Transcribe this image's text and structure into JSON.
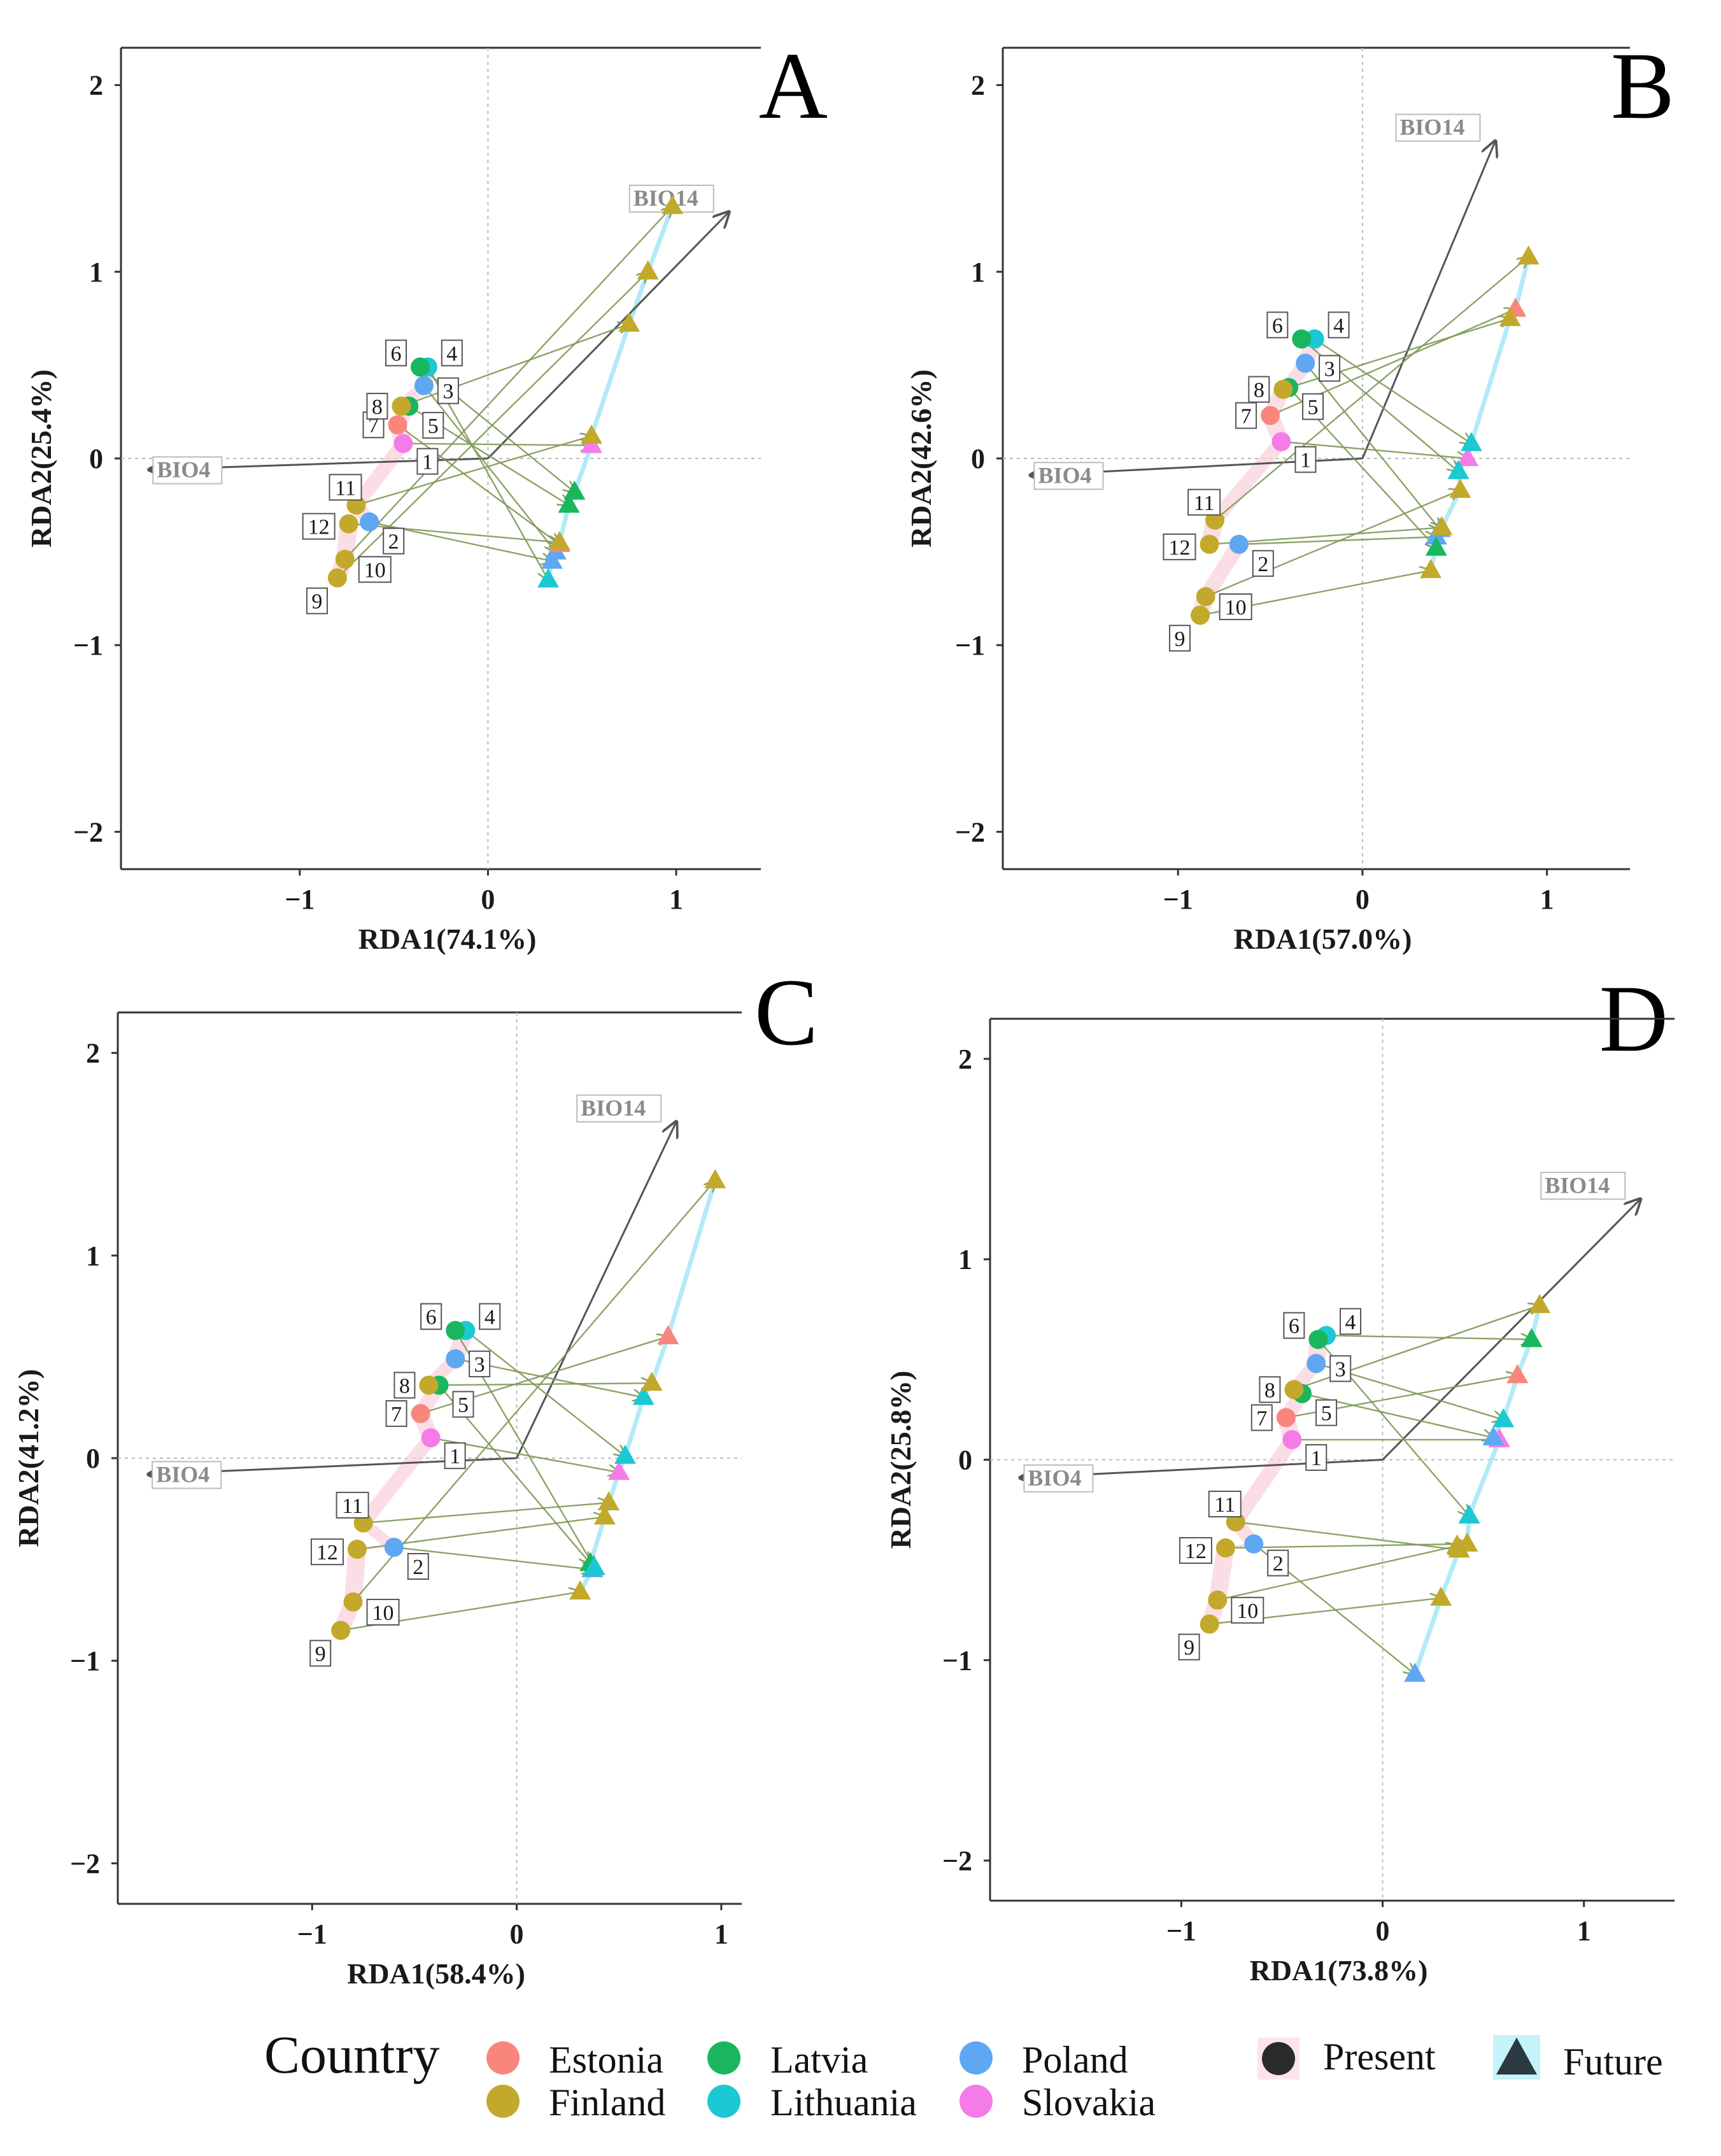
{
  "colors": {
    "Estonia": "#F8867D",
    "Finland": "#C3A92B",
    "Latvia": "#19B65E",
    "Lithuania": "#1BC8D3",
    "Poland": "#5EA7F2",
    "Slovakia": "#F57CE8",
    "arrow": "#7F9A57",
    "biplot": "#555555",
    "hull": "#F9D0DA",
    "futureLine": "#9FE5F5"
  },
  "chart_data": [
    {
      "type": "scatter",
      "panel": "A",
      "xlabel": "RDA1(74.1%)",
      "ylabel": "RDA2(25.4%)",
      "xlim": [
        -1.95,
        1.45
      ],
      "ylim": [
        -2.2,
        2.2
      ],
      "xticks": [
        -1,
        0,
        1
      ],
      "yticks": [
        -2,
        -1,
        0,
        1,
        2
      ],
      "biplot": [
        {
          "name": "BIO14",
          "x": 1.28,
          "y": 1.32
        },
        {
          "name": "BIO4",
          "x": -1.8,
          "y": -0.06
        }
      ],
      "present": [
        {
          "site": "1",
          "country": "Slovakia",
          "x": -0.45,
          "y": 0.08
        },
        {
          "site": "2",
          "country": "Poland",
          "x": -0.63,
          "y": -0.34
        },
        {
          "site": "3",
          "country": "Poland",
          "x": -0.34,
          "y": 0.39
        },
        {
          "site": "4",
          "country": "Lithuania",
          "x": -0.32,
          "y": 0.49
        },
        {
          "site": "5",
          "country": "Latvia",
          "x": -0.42,
          "y": 0.28
        },
        {
          "site": "6",
          "country": "Latvia",
          "x": -0.36,
          "y": 0.49
        },
        {
          "site": "7",
          "country": "Estonia",
          "x": -0.48,
          "y": 0.18
        },
        {
          "site": "8",
          "country": "Finland",
          "x": -0.46,
          "y": 0.28
        },
        {
          "site": "9",
          "country": "Finland",
          "x": -0.8,
          "y": -0.64
        },
        {
          "site": "10",
          "country": "Finland",
          "x": -0.76,
          "y": -0.54
        },
        {
          "site": "11",
          "country": "Finland",
          "x": -0.7,
          "y": -0.25
        },
        {
          "site": "12",
          "country": "Finland",
          "x": -0.74,
          "y": -0.35
        }
      ],
      "future": [
        {
          "site": "1",
          "country": "Slovakia",
          "x": 0.55,
          "y": 0.07
        },
        {
          "site": "2",
          "country": "Poland",
          "x": 0.34,
          "y": -0.55
        },
        {
          "site": "3",
          "country": "Poland",
          "x": 0.36,
          "y": -0.5
        },
        {
          "site": "4",
          "country": "Lithuania",
          "x": 0.32,
          "y": -0.65
        },
        {
          "site": "5",
          "country": "Latvia",
          "x": 0.43,
          "y": -0.25
        },
        {
          "site": "6",
          "country": "Latvia",
          "x": 0.46,
          "y": -0.18
        },
        {
          "site": "7",
          "country": "Estonia",
          "x": 0.38,
          "y": -0.46
        },
        {
          "site": "8",
          "country": "Finland",
          "x": 0.75,
          "y": 0.72
        },
        {
          "site": "9",
          "country": "Finland",
          "x": 0.85,
          "y": 1.0
        },
        {
          "site": "10",
          "country": "Finland",
          "x": 0.98,
          "y": 1.35
        },
        {
          "site": "11",
          "country": "Finland",
          "x": 0.55,
          "y": 0.12
        },
        {
          "site": "12",
          "country": "Finland",
          "x": 0.38,
          "y": -0.45
        }
      ]
    },
    {
      "type": "scatter",
      "panel": "B",
      "xlabel": "RDA1(57.0%)",
      "ylabel": "RDA2(42.6%)",
      "xlim": [
        -1.95,
        1.45
      ],
      "ylim": [
        -2.2,
        2.2
      ],
      "xticks": [
        -1,
        0,
        1
      ],
      "yticks": [
        -2,
        -1,
        0,
        1,
        2
      ],
      "biplot": [
        {
          "name": "BIO14",
          "x": 0.72,
          "y": 1.7
        },
        {
          "name": "BIO4",
          "x": -1.8,
          "y": -0.09
        }
      ],
      "present": [
        {
          "site": "1",
          "country": "Slovakia",
          "x": -0.44,
          "y": 0.09
        },
        {
          "site": "2",
          "country": "Poland",
          "x": -0.67,
          "y": -0.46
        },
        {
          "site": "3",
          "country": "Poland",
          "x": -0.31,
          "y": 0.51
        },
        {
          "site": "4",
          "country": "Lithuania",
          "x": -0.26,
          "y": 0.64
        },
        {
          "site": "5",
          "country": "Latvia",
          "x": -0.4,
          "y": 0.38
        },
        {
          "site": "6",
          "country": "Latvia",
          "x": -0.33,
          "y": 0.64
        },
        {
          "site": "7",
          "country": "Estonia",
          "x": -0.5,
          "y": 0.23
        },
        {
          "site": "8",
          "country": "Finland",
          "x": -0.43,
          "y": 0.37
        },
        {
          "site": "9",
          "country": "Finland",
          "x": -0.88,
          "y": -0.84
        },
        {
          "site": "10",
          "country": "Finland",
          "x": -0.85,
          "y": -0.74
        },
        {
          "site": "11",
          "country": "Finland",
          "x": -0.8,
          "y": -0.33
        },
        {
          "site": "12",
          "country": "Finland",
          "x": -0.83,
          "y": -0.46
        }
      ],
      "future": [
        {
          "site": "1",
          "country": "Slovakia",
          "x": 0.57,
          "y": 0.0
        },
        {
          "site": "2",
          "country": "Poland",
          "x": 0.4,
          "y": -0.42
        },
        {
          "site": "3",
          "country": "Poland",
          "x": 0.42,
          "y": -0.38
        },
        {
          "site": "4",
          "country": "Lithuania",
          "x": 0.59,
          "y": 0.08
        },
        {
          "site": "5",
          "country": "Latvia",
          "x": 0.4,
          "y": -0.48
        },
        {
          "site": "6",
          "country": "Lithuania",
          "x": 0.52,
          "y": -0.07
        },
        {
          "site": "7",
          "country": "Estonia",
          "x": 0.83,
          "y": 0.8
        },
        {
          "site": "8",
          "country": "Finland",
          "x": 0.8,
          "y": 0.75
        },
        {
          "site": "9",
          "country": "Finland",
          "x": 0.37,
          "y": -0.6
        },
        {
          "site": "10",
          "country": "Finland",
          "x": 0.53,
          "y": -0.17
        },
        {
          "site": "11",
          "country": "Finland",
          "x": 0.9,
          "y": 1.08
        },
        {
          "site": "12",
          "country": "Finland",
          "x": 0.43,
          "y": -0.37
        }
      ]
    },
    {
      "type": "scatter",
      "panel": "C",
      "xlabel": "RDA1(58.4%)",
      "ylabel": "RDA2(41.2%)",
      "xlim": [
        -1.95,
        1.1
      ],
      "ylim": [
        -2.2,
        2.2
      ],
      "xticks": [
        -1,
        0,
        1
      ],
      "yticks": [
        -2,
        -1,
        0,
        1,
        2
      ],
      "biplot": [
        {
          "name": "BIO14",
          "x": 0.78,
          "y": 1.66
        },
        {
          "name": "BIO4",
          "x": -1.8,
          "y": -0.08
        }
      ],
      "present": [
        {
          "site": "1",
          "country": "Slovakia",
          "x": -0.42,
          "y": 0.1
        },
        {
          "site": "2",
          "country": "Poland",
          "x": -0.6,
          "y": -0.44
        },
        {
          "site": "3",
          "country": "Poland",
          "x": -0.3,
          "y": 0.49
        },
        {
          "site": "4",
          "country": "Lithuania",
          "x": -0.25,
          "y": 0.63
        },
        {
          "site": "5",
          "country": "Latvia",
          "x": -0.38,
          "y": 0.36
        },
        {
          "site": "6",
          "country": "Latvia",
          "x": -0.3,
          "y": 0.63
        },
        {
          "site": "7",
          "country": "Estonia",
          "x": -0.47,
          "y": 0.22
        },
        {
          "site": "8",
          "country": "Finland",
          "x": -0.43,
          "y": 0.36
        },
        {
          "site": "9",
          "country": "Finland",
          "x": -0.86,
          "y": -0.85
        },
        {
          "site": "10",
          "country": "Finland",
          "x": -0.8,
          "y": -0.71
        },
        {
          "site": "11",
          "country": "Finland",
          "x": -0.75,
          "y": -0.32
        },
        {
          "site": "12",
          "country": "Finland",
          "x": -0.78,
          "y": -0.45
        }
      ],
      "future": [
        {
          "site": "1",
          "country": "Slovakia",
          "x": 0.5,
          "y": -0.07
        },
        {
          "site": "2",
          "country": "Poland",
          "x": 0.37,
          "y": -0.55
        },
        {
          "site": "3",
          "country": "Lithuania",
          "x": 0.62,
          "y": 0.3
        },
        {
          "site": "4",
          "country": "Lithuania",
          "x": 0.53,
          "y": 0.01
        },
        {
          "site": "5",
          "country": "Latvia",
          "x": 0.36,
          "y": -0.52
        },
        {
          "site": "6",
          "country": "Lithuania",
          "x": 0.38,
          "y": -0.54
        },
        {
          "site": "7",
          "country": "Estonia",
          "x": 0.74,
          "y": 0.6
        },
        {
          "site": "8",
          "country": "Finland",
          "x": 0.66,
          "y": 0.37
        },
        {
          "site": "9",
          "country": "Finland",
          "x": 0.31,
          "y": -0.66
        },
        {
          "site": "10",
          "country": "Finland",
          "x": 0.97,
          "y": 1.37
        },
        {
          "site": "11",
          "country": "Finland",
          "x": 0.45,
          "y": -0.22
        },
        {
          "site": "12",
          "country": "Finland",
          "x": 0.43,
          "y": -0.29
        }
      ]
    },
    {
      "type": "scatter",
      "panel": "D",
      "xlabel": "RDA1(73.8%)",
      "ylabel": "RDA2(25.8%)",
      "xlim": [
        -1.95,
        1.45
      ],
      "ylim": [
        -2.2,
        2.2
      ],
      "xticks": [
        -1,
        0,
        1
      ],
      "yticks": [
        -2,
        -1,
        0,
        1,
        2
      ],
      "biplot": [
        {
          "name": "BIO14",
          "x": 1.28,
          "y": 1.3
        },
        {
          "name": "BIO4",
          "x": -1.8,
          "y": -0.09
        }
      ],
      "present": [
        {
          "site": "1",
          "country": "Slovakia",
          "x": -0.45,
          "y": 0.1
        },
        {
          "site": "2",
          "country": "Poland",
          "x": -0.64,
          "y": -0.42
        },
        {
          "site": "3",
          "country": "Poland",
          "x": -0.33,
          "y": 0.48
        },
        {
          "site": "4",
          "country": "Lithuania",
          "x": -0.28,
          "y": 0.62
        },
        {
          "site": "5",
          "country": "Latvia",
          "x": -0.4,
          "y": 0.33
        },
        {
          "site": "6",
          "country": "Latvia",
          "x": -0.32,
          "y": 0.6
        },
        {
          "site": "7",
          "country": "Estonia",
          "x": -0.48,
          "y": 0.21
        },
        {
          "site": "8",
          "country": "Finland",
          "x": -0.44,
          "y": 0.35
        },
        {
          "site": "9",
          "country": "Finland",
          "x": -0.86,
          "y": -0.82
        },
        {
          "site": "10",
          "country": "Finland",
          "x": -0.82,
          "y": -0.7
        },
        {
          "site": "11",
          "country": "Finland",
          "x": -0.73,
          "y": -0.31
        },
        {
          "site": "12",
          "country": "Finland",
          "x": -0.78,
          "y": -0.44
        }
      ],
      "future": [
        {
          "site": "1",
          "country": "Slovakia",
          "x": 0.58,
          "y": 0.1
        },
        {
          "site": "2",
          "country": "Poland",
          "x": 0.16,
          "y": -1.07
        },
        {
          "site": "3",
          "country": "Lithuania",
          "x": 0.6,
          "y": 0.2
        },
        {
          "site": "4",
          "country": "Latvia",
          "x": 0.74,
          "y": 0.6
        },
        {
          "site": "5",
          "country": "Poland",
          "x": 0.55,
          "y": 0.11
        },
        {
          "site": "6",
          "country": "Lithuania",
          "x": 0.43,
          "y": -0.28
        },
        {
          "site": "7",
          "country": "Estonia",
          "x": 0.67,
          "y": 0.42
        },
        {
          "site": "8",
          "country": "Finland",
          "x": 0.78,
          "y": 0.77
        },
        {
          "site": "9",
          "country": "Finland",
          "x": 0.29,
          "y": -0.69
        },
        {
          "site": "10",
          "country": "Finland",
          "x": 0.37,
          "y": -0.43
        },
        {
          "site": "11",
          "country": "Finland",
          "x": 0.38,
          "y": -0.45
        },
        {
          "site": "12",
          "country": "Finland",
          "x": 0.42,
          "y": -0.42
        }
      ]
    }
  ],
  "legend": {
    "title": "Country",
    "countries": [
      "Estonia",
      "Finland",
      "Latvia",
      "Lithuania",
      "Poland",
      "Slovakia"
    ],
    "shapes": {
      "present": "Present",
      "future": "Future"
    }
  }
}
